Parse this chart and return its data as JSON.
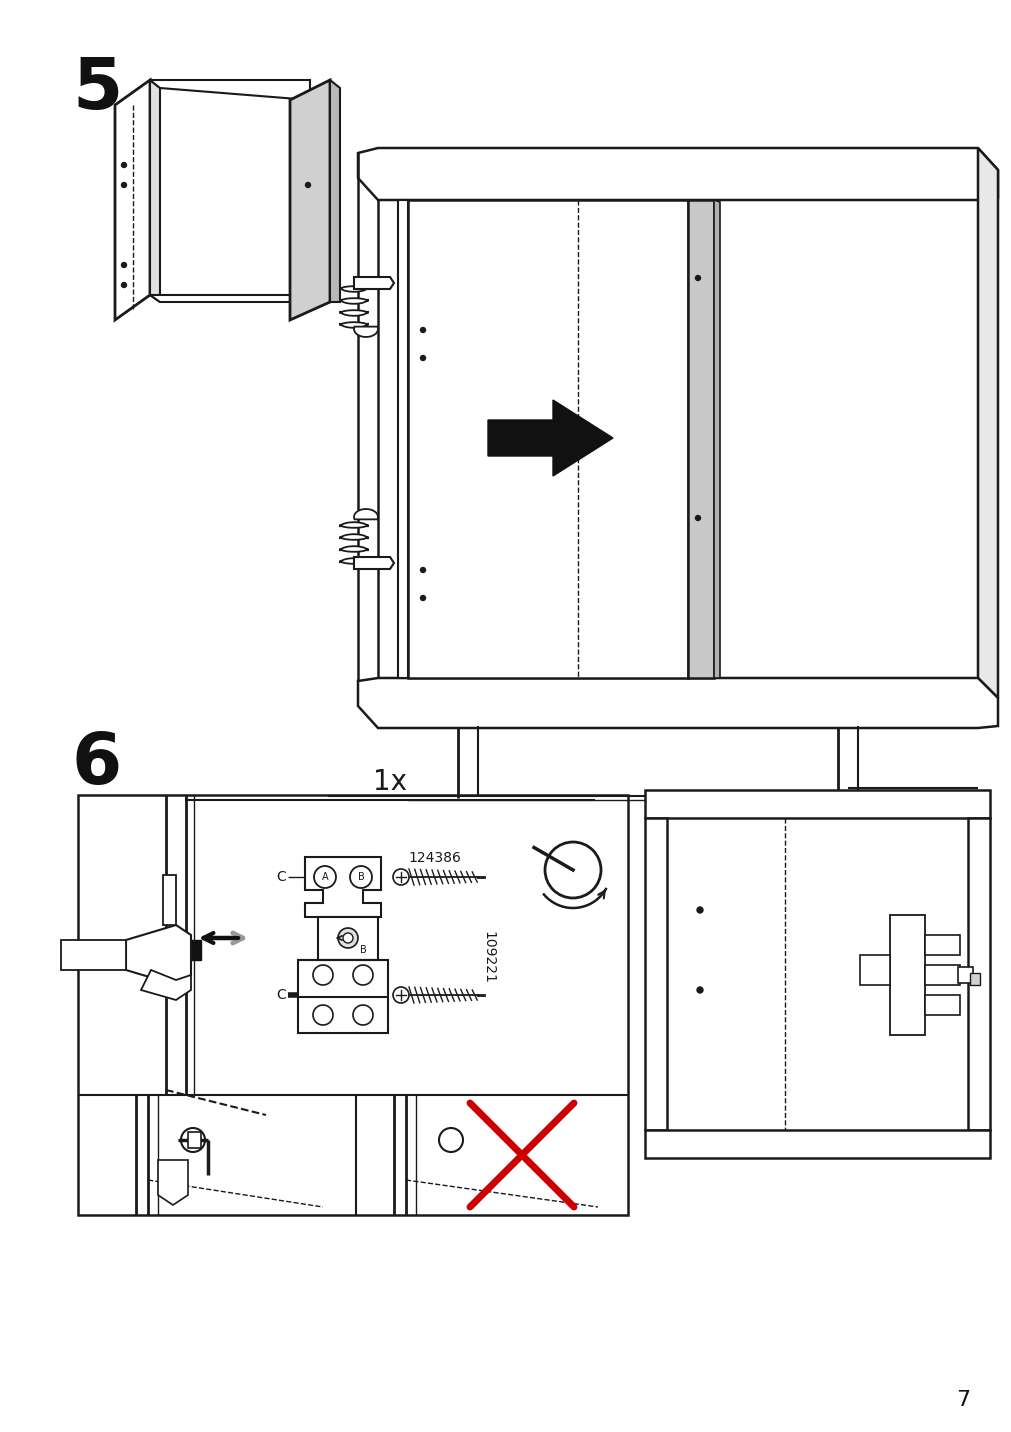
{
  "page_number": "7",
  "step5_label": "5",
  "step6_label": "6",
  "quantity_label": "1x",
  "part_number_1": "124386",
  "part_number_2": "109221",
  "bg_color": "#ffffff",
  "line_color": "#1a1a1a",
  "gray_fill": "#cccccc",
  "light_gray": "#e8e8e8",
  "step_fontsize": 52,
  "quantity_fontsize": 20,
  "part_fontsize": 10
}
